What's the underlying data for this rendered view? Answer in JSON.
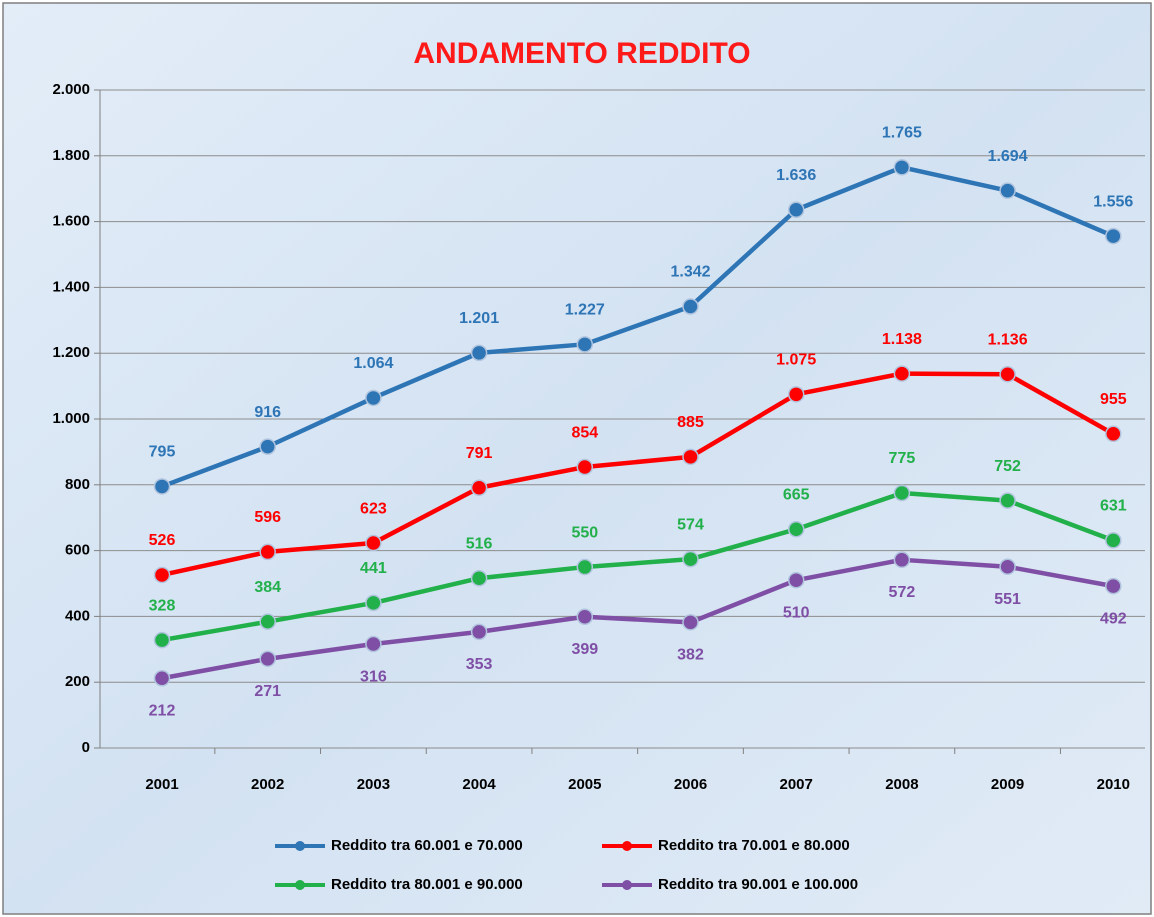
{
  "chart_data": {
    "type": "line",
    "title": "ANDAMENTO REDDITO",
    "categories": [
      "2001",
      "2002",
      "2003",
      "2004",
      "2005",
      "2006",
      "2007",
      "2008",
      "2009",
      "2010"
    ],
    "series": [
      {
        "name": "Reddito tra 60.001 e 70.000",
        "color": "#2e75b6",
        "values": [
          795,
          916,
          1064,
          1201,
          1227,
          1342,
          1636,
          1765,
          1694,
          1556
        ],
        "value_labels": [
          "795",
          "916",
          "1.064",
          "1.201",
          "1.227",
          "1.342",
          "1.636",
          "1.765",
          "1.694",
          "1.556"
        ]
      },
      {
        "name": "Reddito tra 70.001 e 80.000",
        "color": "#ff0000",
        "values": [
          526,
          596,
          623,
          791,
          854,
          885,
          1075,
          1138,
          1136,
          955
        ],
        "value_labels": [
          "526",
          "596",
          "623",
          "791",
          "854",
          "885",
          "1.075",
          "1.138",
          "1.136",
          "955"
        ]
      },
      {
        "name": "Reddito tra 80.001 e 90.000",
        "color": "#22b04b",
        "values": [
          328,
          384,
          441,
          516,
          550,
          574,
          665,
          775,
          752,
          631
        ],
        "value_labels": [
          "328",
          "384",
          "441",
          "516",
          "550",
          "574",
          "665",
          "775",
          "752",
          "631"
        ]
      },
      {
        "name": "Reddito tra 90.001 e 100.000",
        "color": "#7f4fa5",
        "values": [
          212,
          271,
          316,
          353,
          399,
          382,
          510,
          572,
          551,
          492
        ],
        "value_labels": [
          "212",
          "271",
          "316",
          "353",
          "399",
          "382",
          "510",
          "572",
          "551",
          "492"
        ]
      }
    ],
    "ylim": [
      0,
      2000
    ],
    "yticks": [
      0,
      200,
      400,
      600,
      800,
      {
        "value": 1000,
        "label": "1.000"
      },
      {
        "value": 1200,
        "label": "1.200"
      },
      {
        "value": 1400,
        "label": "1.400"
      },
      {
        "value": 1600,
        "label": "1.600"
      },
      {
        "value": 1800,
        "label": "1.800"
      },
      {
        "value": 2000,
        "label": "2.000"
      }
    ],
    "grid": true,
    "legend": "bottom"
  }
}
